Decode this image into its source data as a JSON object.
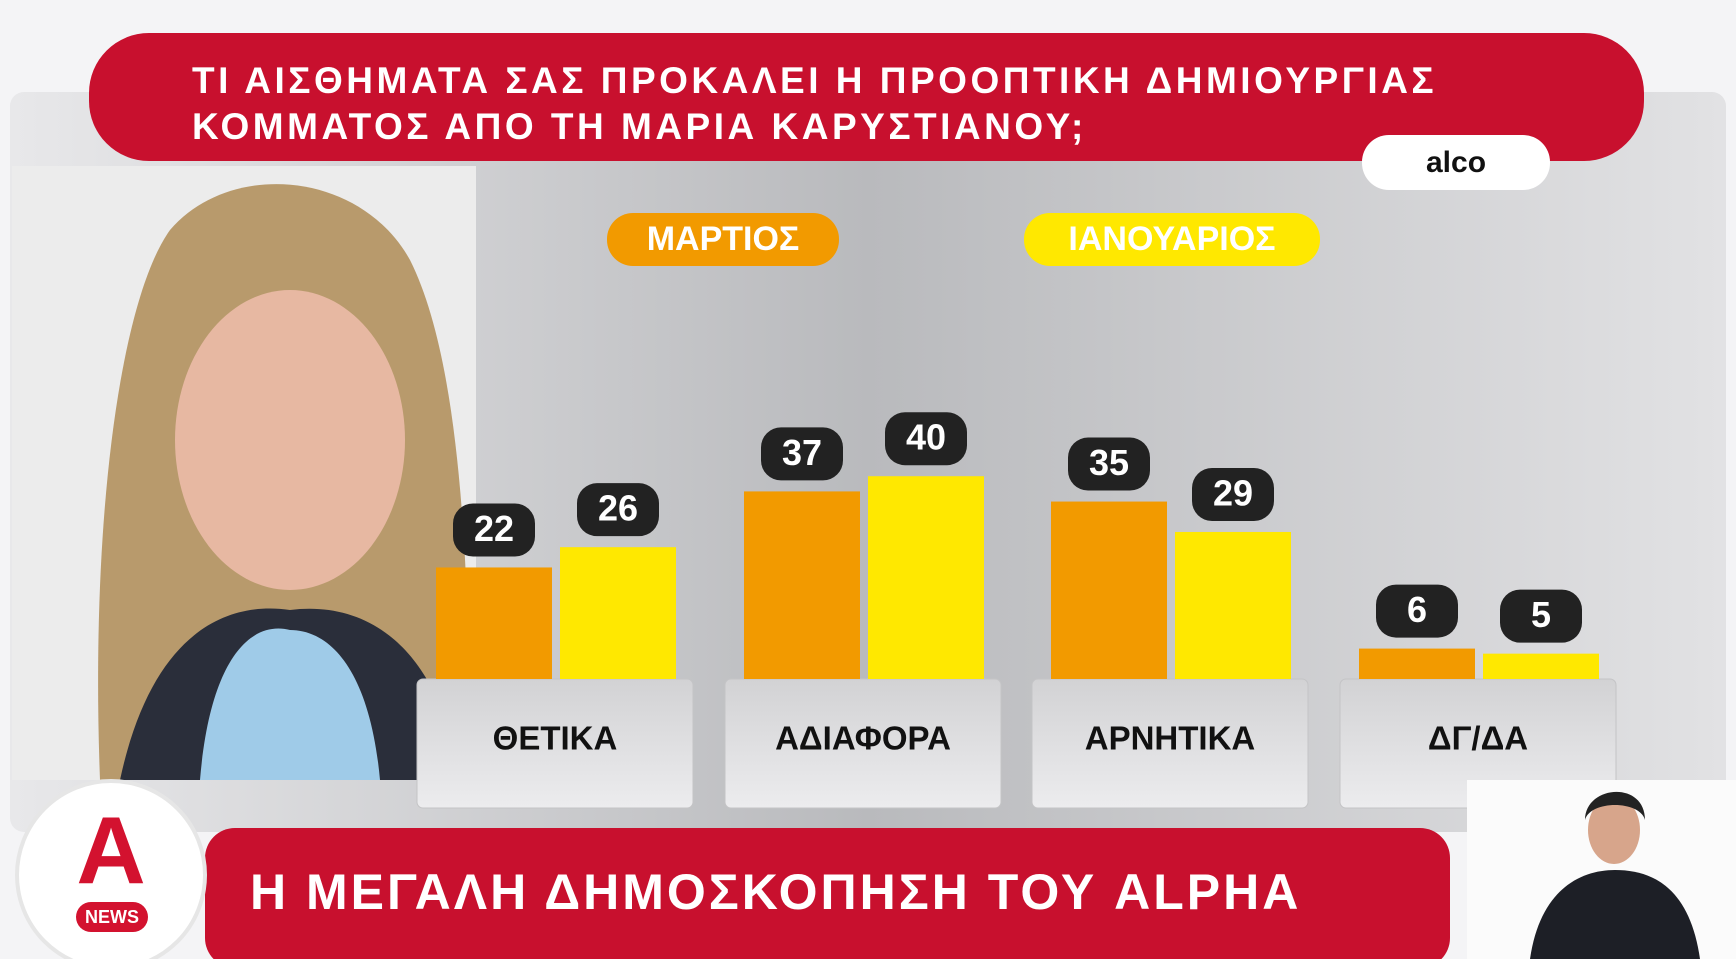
{
  "chart_data": {
    "type": "bar",
    "title": "ΤΙ ΑΙΣΘΗΜΑΤΑ ΣΑΣ ΠΡΟΚΑΛΕΙ Η ΠΡΟΟΠΤΙΚΗ ΔΗΜΙΟΥΡΓΙΑΣ ΚΟΜΜΑΤΟΣ ΑΠΟ ΤΗ ΜΑΡΙΑ ΚΑΡΥΣΤΙΑΝΟΥ;",
    "categories": [
      "ΘΕΤΙΚΑ",
      "ΑΔΙΑΦΟΡΑ",
      "ΑΡΝΗΤΙΚΑ",
      "ΔΓ/ΔΑ"
    ],
    "series": [
      {
        "name": "ΜΑΡΤΙΟΣ",
        "color": "#f29a00",
        "values": [
          22,
          37,
          35,
          6
        ]
      },
      {
        "name": "ΙΑΝΟΥΑΡΙΟΣ",
        "color": "#ffe800",
        "values": [
          26,
          40,
          29,
          5
        ]
      }
    ]
  },
  "source": "alco",
  "banner": "Η ΜΕΓΑΛΗ ΔΗΜΟΣΚΟΠΗΣΗ ΤΟΥ ALPHA",
  "logo": {
    "letter": "A",
    "label": "NEWS"
  }
}
